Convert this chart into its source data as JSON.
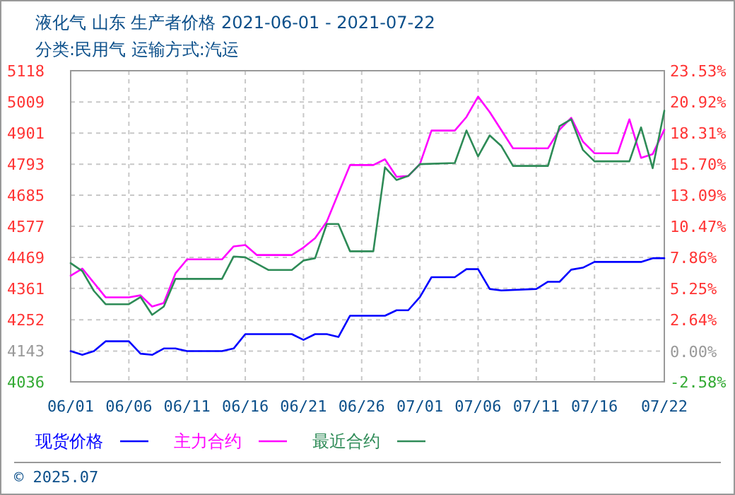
{
  "chart_data": {
    "type": "line",
    "title": "液化气 山东 生产者价格 2021-06-01 - 2021-07-22",
    "subtitle": "分类:民用气 运输方式:汽运",
    "annotations": [
      "© 2025.07"
    ],
    "xlim": [
      "2021-06-01",
      "2021-07-22"
    ],
    "xticks": [
      {
        "value": "2021-06-01",
        "label": "06/01"
      },
      {
        "value": "2021-06-06",
        "label": "06/06"
      },
      {
        "value": "2021-06-11",
        "label": "06/11"
      },
      {
        "value": "2021-06-16",
        "label": "06/16"
      },
      {
        "value": "2021-06-21",
        "label": "06/21"
      },
      {
        "value": "2021-06-26",
        "label": "06/26"
      },
      {
        "value": "2021-07-01",
        "label": "07/01"
      },
      {
        "value": "2021-07-06",
        "label": "07/06"
      },
      {
        "value": "2021-07-11",
        "label": "07/11"
      },
      {
        "value": "2021-07-16",
        "label": "07/16"
      },
      {
        "value": "2021-07-22",
        "label": "07/22"
      }
    ],
    "ylim": [
      4036,
      5118
    ],
    "yticks": [
      4036,
      4143,
      4252,
      4361,
      4469,
      4577,
      4685,
      4793,
      4901,
      5009,
      5118
    ],
    "y2lim": [
      -2.58,
      23.53
    ],
    "y2ticks": [
      {
        "value": -2.58,
        "label": "-2.58%"
      },
      {
        "value": 0,
        "label": "0.00%"
      },
      {
        "value": 2.64,
        "label": "2.64%"
      },
      {
        "value": 5.25,
        "label": "5.25%"
      },
      {
        "value": 7.86,
        "label": "7.86%"
      },
      {
        "value": 10.47,
        "label": "10.47%"
      },
      {
        "value": 13.09,
        "label": "13.09%"
      },
      {
        "value": 15.7,
        "label": "15.70%"
      },
      {
        "value": 18.31,
        "label": "18.31%"
      },
      {
        "value": 20.92,
        "label": "20.92%"
      },
      {
        "value": 23.53,
        "label": "23.53%"
      }
    ],
    "grid": true,
    "legend": "bottom",
    "marker": "none",
    "line_style": "solid",
    "series": [
      {
        "name": "现货价格",
        "color": "#0000ff",
        "x": [
          "2021-06-01",
          "2021-06-02",
          "2021-06-03",
          "2021-06-04",
          "2021-06-06",
          "2021-06-07",
          "2021-06-08",
          "2021-06-09",
          "2021-06-10",
          "2021-06-11",
          "2021-06-14",
          "2021-06-15",
          "2021-06-16",
          "2021-06-20",
          "2021-06-21",
          "2021-06-22",
          "2021-06-23",
          "2021-06-24",
          "2021-06-25",
          "2021-06-28",
          "2021-06-29",
          "2021-06-30",
          "2021-07-01",
          "2021-07-02",
          "2021-07-04",
          "2021-07-05",
          "2021-07-06",
          "2021-07-07",
          "2021-07-08",
          "2021-07-11",
          "2021-07-12",
          "2021-07-13",
          "2021-07-14",
          "2021-07-15",
          "2021-07-16",
          "2021-07-20",
          "2021-07-21",
          "2021-07-22"
        ],
        "values": [
          4143,
          4130,
          4143,
          4177,
          4177,
          4134,
          4130,
          4152,
          4152,
          4143,
          4143,
          4152,
          4202,
          4202,
          4182,
          4202,
          4202,
          4192,
          4266,
          4266,
          4285,
          4285,
          4331,
          4400,
          4400,
          4428,
          4428,
          4359,
          4354,
          4359,
          4384,
          4384,
          4426,
          4433,
          4453,
          4453,
          4466,
          4466
        ]
      },
      {
        "name": "主力合约",
        "color": "#ff00ff",
        "x": [
          "2021-06-01",
          "2021-06-02",
          "2021-06-04",
          "2021-06-06",
          "2021-06-07",
          "2021-06-08",
          "2021-06-09",
          "2021-06-10",
          "2021-06-11",
          "2021-06-14",
          "2021-06-15",
          "2021-06-16",
          "2021-06-17",
          "2021-06-20",
          "2021-06-21",
          "2021-06-22",
          "2021-06-23",
          "2021-06-24",
          "2021-06-25",
          "2021-06-27",
          "2021-06-28",
          "2021-06-29",
          "2021-06-30",
          "2021-07-01",
          "2021-07-02",
          "2021-07-04",
          "2021-07-05",
          "2021-07-06",
          "2021-07-07",
          "2021-07-09",
          "2021-07-11",
          "2021-07-12",
          "2021-07-13",
          "2021-07-14",
          "2021-07-15",
          "2021-07-16",
          "2021-07-18",
          "2021-07-19",
          "2021-07-20",
          "2021-07-21",
          "2021-07-22"
        ],
        "values": [
          4405,
          4430,
          4330,
          4330,
          4337,
          4298,
          4310,
          4413,
          4462,
          4462,
          4507,
          4512,
          4477,
          4477,
          4503,
          4536,
          4593,
          4692,
          4790,
          4790,
          4810,
          4749,
          4752,
          4793,
          4910,
          4910,
          4957,
          5028,
          4974,
          4848,
          4848,
          4848,
          4913,
          4954,
          4872,
          4831,
          4831,
          4949,
          4815,
          4828,
          4913
        ]
      },
      {
        "name": "最近合约",
        "color": "#2e8b57",
        "x": [
          "2021-06-01",
          "2021-06-02",
          "2021-06-03",
          "2021-06-04",
          "2021-06-06",
          "2021-06-07",
          "2021-06-08",
          "2021-06-09",
          "2021-06-10",
          "2021-06-14",
          "2021-06-15",
          "2021-06-16",
          "2021-06-18",
          "2021-06-20",
          "2021-06-21",
          "2021-06-22",
          "2021-06-23",
          "2021-06-24",
          "2021-06-25",
          "2021-06-27",
          "2021-06-28",
          "2021-06-29",
          "2021-06-30",
          "2021-07-01",
          "2021-07-04",
          "2021-07-05",
          "2021-07-06",
          "2021-07-07",
          "2021-07-08",
          "2021-07-09",
          "2021-07-12",
          "2021-07-13",
          "2021-07-14",
          "2021-07-15",
          "2021-07-16",
          "2021-07-19",
          "2021-07-20",
          "2021-07-21",
          "2021-07-22"
        ],
        "values": [
          4449,
          4421,
          4352,
          4306,
          4306,
          4331,
          4269,
          4298,
          4394,
          4394,
          4472,
          4469,
          4425,
          4425,
          4458,
          4466,
          4585,
          4585,
          4490,
          4490,
          4782,
          4738,
          4752,
          4793,
          4797,
          4910,
          4820,
          4893,
          4856,
          4787,
          4787,
          4925,
          4949,
          4843,
          4803,
          4803,
          4921,
          4779,
          4979
        ]
      }
    ]
  }
}
